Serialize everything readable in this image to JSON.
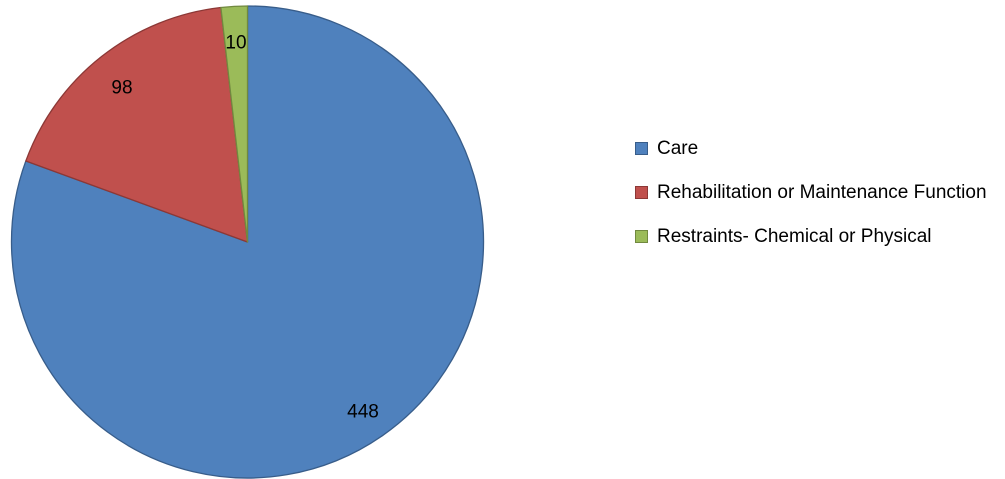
{
  "chart_data": {
    "type": "pie",
    "categories": [
      "Care",
      "Rehabilitation or Maintenance Function",
      "Restraints- Chemical or Physical"
    ],
    "values": [
      448,
      98,
      10
    ],
    "data_labels": [
      "448",
      "98",
      "10"
    ],
    "colors": [
      "#4F81BD",
      "#C0504D",
      "#9BBB59"
    ],
    "border_colors": [
      "#385D8A",
      "#8C3836",
      "#71893F"
    ],
    "start_angle": "12 o'clock",
    "direction": "clockwise",
    "legend": {
      "position": "right",
      "entries": [
        "Care",
        "Rehabilitation or Maintenance Function",
        "Restraints- Chemical or Physical"
      ]
    }
  }
}
